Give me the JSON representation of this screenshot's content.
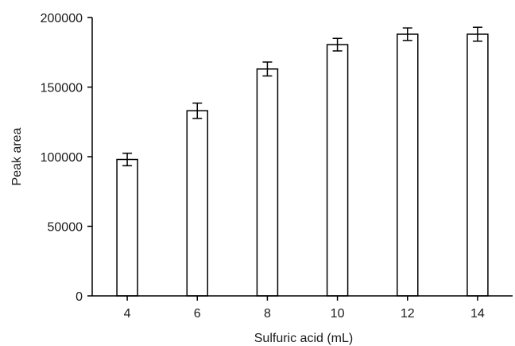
{
  "chart_data": {
    "type": "bar",
    "title": "",
    "xlabel": "Sulfuric acid (mL)",
    "ylabel": "Peak area",
    "categories": [
      "4",
      "6",
      "8",
      "10",
      "12",
      "14"
    ],
    "values": [
      98000,
      133000,
      163000,
      180500,
      188000,
      188000
    ],
    "errors": [
      4500,
      5500,
      5000,
      4500,
      4500,
      5000
    ],
    "ylim": [
      0,
      200000
    ],
    "yticks": [
      "0",
      "50000",
      "100000",
      "150000",
      "200000"
    ],
    "grid": false,
    "legend": "none",
    "bar_fill": "#ffffff",
    "bar_stroke": "#000000"
  }
}
